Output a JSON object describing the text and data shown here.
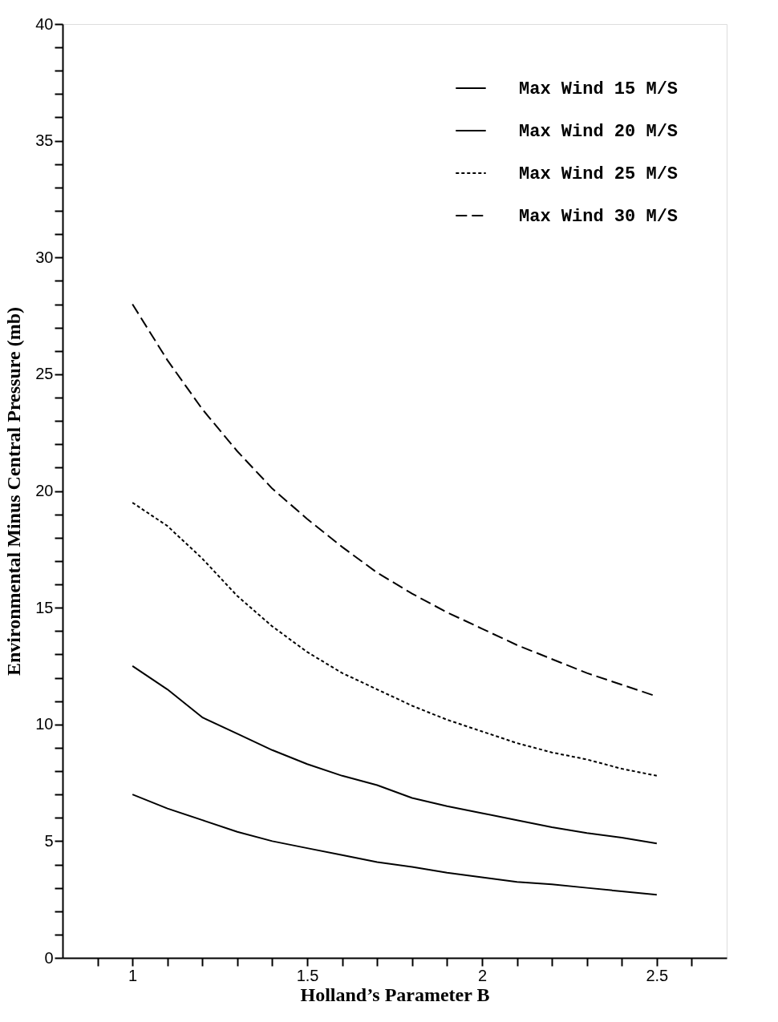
{
  "chart_data": {
    "type": "line",
    "xlabel": "Holland’s Parameter B",
    "ylabel": "Environmental Minus Central Pressure (mb)",
    "x": [
      1.0,
      1.1,
      1.2,
      1.3,
      1.4,
      1.5,
      1.6,
      1.7,
      1.8,
      1.9,
      2.0,
      2.1,
      2.2,
      2.3,
      2.4,
      2.5
    ],
    "series": [
      {
        "name": "Max Wind 15 M/S",
        "color": "#000000",
        "line_style": "solid",
        "values": [
          7.0,
          6.4,
          5.9,
          5.4,
          5.0,
          4.7,
          4.4,
          4.1,
          3.9,
          3.65,
          3.45,
          3.25,
          3.15,
          3.0,
          2.85,
          2.7
        ]
      },
      {
        "name": "Max Wind 20 M/S",
        "color": "#000000",
        "line_style": "solid",
        "values": [
          12.5,
          11.5,
          10.3,
          9.6,
          8.9,
          8.3,
          7.8,
          7.4,
          6.85,
          6.5,
          6.2,
          5.9,
          5.6,
          5.35,
          5.15,
          4.9
        ]
      },
      {
        "name": "Max Wind 25 M/S",
        "color": "#000000",
        "line_style": "dotted",
        "values": [
          19.5,
          18.5,
          17.1,
          15.5,
          14.2,
          13.1,
          12.2,
          11.5,
          10.8,
          10.2,
          9.7,
          9.2,
          8.8,
          8.5,
          8.1,
          7.8
        ]
      },
      {
        "name": "Max Wind 30 M/S",
        "color": "#000000",
        "line_style": "dashed",
        "values": [
          28.0,
          25.6,
          23.5,
          21.7,
          20.1,
          18.8,
          17.6,
          16.5,
          15.6,
          14.8,
          14.1,
          13.4,
          12.8,
          12.2,
          11.7,
          11.2
        ]
      }
    ],
    "xlim": [
      0.8,
      2.7
    ],
    "xticks": [
      {
        "value": 0.9,
        "label": null
      },
      1,
      {
        "value": 1.1,
        "label": null
      },
      {
        "value": 1.2,
        "label": null
      },
      {
        "value": 1.3,
        "label": null
      },
      {
        "value": 1.4,
        "label": null
      },
      1.5,
      {
        "value": 1.6,
        "label": null
      },
      {
        "value": 1.7,
        "label": null
      },
      {
        "value": 1.8,
        "label": null
      },
      {
        "value": 1.9,
        "label": null
      },
      2,
      {
        "value": 2.1,
        "label": null
      },
      {
        "value": 2.2,
        "label": null
      },
      {
        "value": 2.3,
        "label": null
      },
      {
        "value": 2.4,
        "label": null
      },
      2.5,
      {
        "value": 2.6,
        "label": null
      }
    ],
    "ylim": [
      0,
      40
    ],
    "yticks": [
      0,
      {
        "value": 1,
        "label": null
      },
      {
        "value": 2,
        "label": null
      },
      {
        "value": 3,
        "label": null
      },
      {
        "value": 4,
        "label": null
      },
      5,
      {
        "value": 6,
        "label": null
      },
      {
        "value": 7,
        "label": null
      },
      {
        "value": 8,
        "label": null
      },
      {
        "value": 9,
        "label": null
      },
      10,
      {
        "value": 11,
        "label": null
      },
      {
        "value": 12,
        "label": null
      },
      {
        "value": 13,
        "label": null
      },
      {
        "value": 14,
        "label": null
      },
      15,
      {
        "value": 16,
        "label": null
      },
      {
        "value": 17,
        "label": null
      },
      {
        "value": 18,
        "label": null
      },
      {
        "value": 19,
        "label": null
      },
      20,
      {
        "value": 21,
        "label": null
      },
      {
        "value": 22,
        "label": null
      },
      {
        "value": 23,
        "label": null
      },
      {
        "value": 24,
        "label": null
      },
      25,
      {
        "value": 26,
        "label": null
      },
      {
        "value": 27,
        "label": null
      },
      {
        "value": 28,
        "label": null
      },
      {
        "value": 29,
        "label": null
      },
      30,
      {
        "value": 31,
        "label": null
      },
      {
        "value": 32,
        "label": null
      },
      {
        "value": 33,
        "label": null
      },
      {
        "value": 34,
        "label": null
      },
      35,
      {
        "value": 36,
        "label": null
      },
      {
        "value": 37,
        "label": null
      },
      {
        "value": 38,
        "label": null
      },
      {
        "value": 39,
        "label": null
      },
      40
    ],
    "grid": false,
    "legend": "top right"
  }
}
